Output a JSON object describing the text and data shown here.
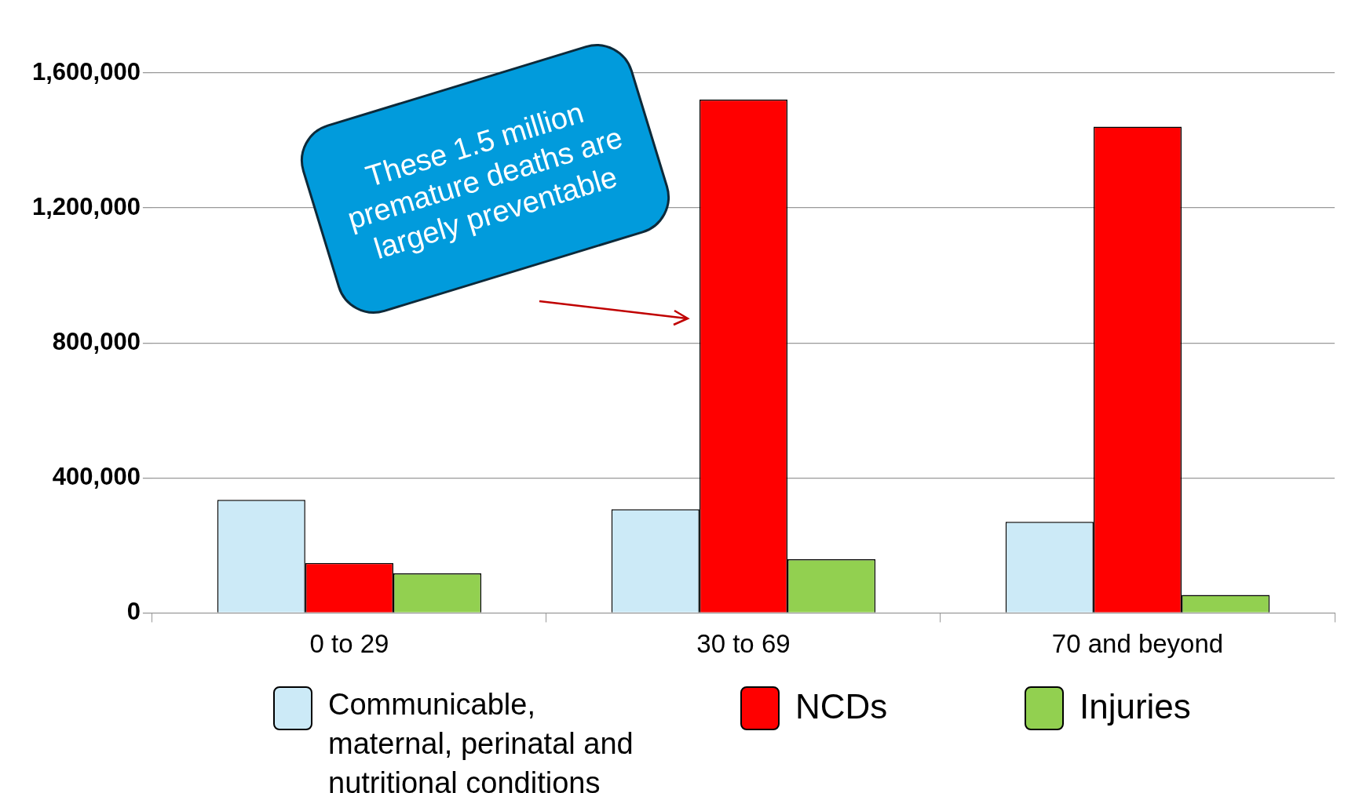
{
  "chart_data": {
    "type": "bar",
    "categories": [
      "0 to 29",
      "30 to 69",
      "70 and beyond"
    ],
    "series": [
      {
        "name": "Communicable, maternal, perinatal and nutritional conditions",
        "color": "#cceaf7",
        "values": [
          335000,
          307000,
          270000
        ]
      },
      {
        "name": "NCDs",
        "color": "#ff0000",
        "values": [
          148000,
          1521000,
          1441000
        ]
      },
      {
        "name": "Injuries",
        "color": "#92d050",
        "values": [
          117000,
          159000,
          53000
        ]
      }
    ],
    "ylim": [
      0,
      1600000
    ],
    "yticks": [
      0,
      {
        "value": 400000,
        "label": "400,000"
      },
      {
        "value": 800000,
        "label": "800,000"
      },
      {
        "value": 1200000,
        "label": "1,200,000"
      },
      {
        "value": 1600000,
        "label": "1,600,000"
      }
    ],
    "grid": "y",
    "legend": "bottom",
    "annotations": [
      "These 1.5 million premature deaths are largely preventable"
    ]
  }
}
